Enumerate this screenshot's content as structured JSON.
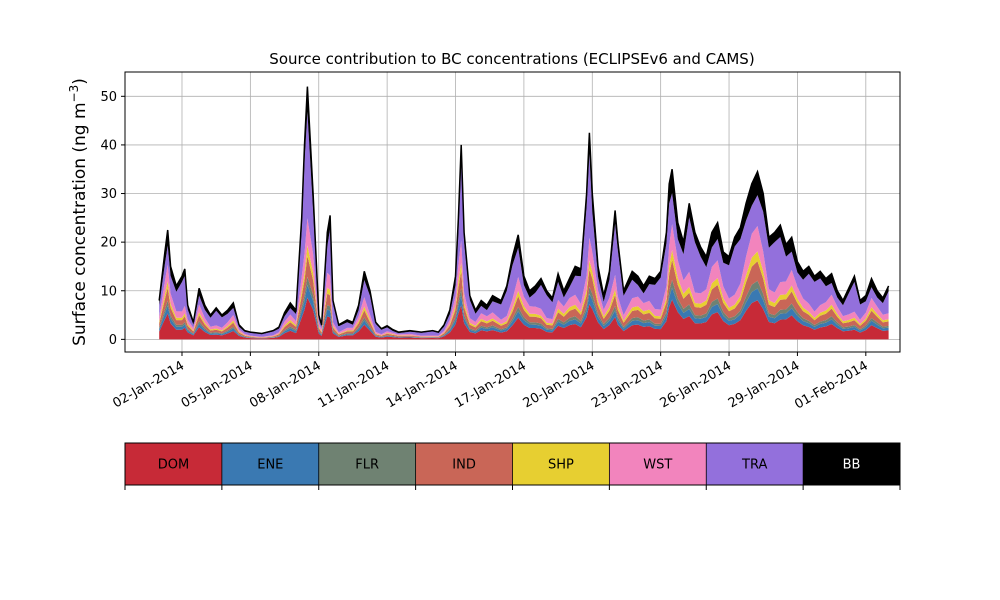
{
  "chart_data": {
    "type": "area",
    "title": "Source contribution to BC concentrations (ECLIPSEv6 and CAMS)",
    "ylabel": "Surface concentration (ng m",
    "ylabel_unit_exponent": "−3",
    "ylabel_close": ")",
    "xlabel": "",
    "ylim": [
      -2.6,
      55
    ],
    "yticks": [
      0,
      10,
      20,
      30,
      40,
      50
    ],
    "xlim": [
      "2013-12-30T12:00",
      "2014-02-02T12:00"
    ],
    "xtick_labels": [
      "02-Jan-2014",
      "05-Jan-2014",
      "08-Jan-2014",
      "11-Jan-2014",
      "14-Jan-2014",
      "17-Jan-2014",
      "20-Jan-2014",
      "23-Jan-2014",
      "26-Jan-2014",
      "29-Jan-2014",
      "01-Feb-2014"
    ],
    "xtick_dates": [
      "2014-01-02",
      "2014-01-05",
      "2014-01-08",
      "2014-01-11",
      "2014-01-14",
      "2014-01-17",
      "2014-01-20",
      "2014-01-23",
      "2014-01-26",
      "2014-01-29",
      "2014-02-01"
    ],
    "grid": true,
    "legend": "colorbar below chart",
    "stack_order": [
      "DOM",
      "ENE",
      "FLR",
      "IND",
      "SHP",
      "WST",
      "TRA",
      "BB"
    ],
    "series": [
      {
        "name": "DOM",
        "color": "#c72a37"
      },
      {
        "name": "ENE",
        "color": "#3a79b2"
      },
      {
        "name": "FLR",
        "color": "#6f8272"
      },
      {
        "name": "IND",
        "color": "#c96657"
      },
      {
        "name": "SHP",
        "color": "#e7cf31"
      },
      {
        "name": "WST",
        "color": "#f284bd"
      },
      {
        "name": "TRA",
        "color": "#9370dc"
      },
      {
        "name": "BB",
        "color": "#000000"
      }
    ],
    "total": [
      [
        "2014-01-01T00:00",
        8
      ],
      [
        "2014-01-01T06:00",
        18
      ],
      [
        "2014-01-01T09:00",
        22.5
      ],
      [
        "2014-01-01T12:00",
        15
      ],
      [
        "2014-01-01T18:00",
        11
      ],
      [
        "2014-01-02T00:00",
        13
      ],
      [
        "2014-01-02T03:00",
        14.5
      ],
      [
        "2014-01-02T06:00",
        7
      ],
      [
        "2014-01-02T12:00",
        3.5
      ],
      [
        "2014-01-02T18:00",
        10.5
      ],
      [
        "2014-01-03T00:00",
        7
      ],
      [
        "2014-01-03T06:00",
        5
      ],
      [
        "2014-01-03T12:00",
        6.5
      ],
      [
        "2014-01-03T18:00",
        5
      ],
      [
        "2014-01-04T00:00",
        6
      ],
      [
        "2014-01-04T06:00",
        7.5
      ],
      [
        "2014-01-04T12:00",
        3
      ],
      [
        "2014-01-04T18:00",
        1.8
      ],
      [
        "2014-01-05T00:00",
        1.5
      ],
      [
        "2014-01-05T12:00",
        1.2
      ],
      [
        "2014-01-06T00:00",
        1.8
      ],
      [
        "2014-01-06T06:00",
        2.5
      ],
      [
        "2014-01-06T12:00",
        5.5
      ],
      [
        "2014-01-06T18:00",
        7.5
      ],
      [
        "2014-01-07T00:00",
        6
      ],
      [
        "2014-01-07T06:00",
        25
      ],
      [
        "2014-01-07T09:00",
        40
      ],
      [
        "2014-01-07T12:00",
        52
      ],
      [
        "2014-01-07T18:00",
        30
      ],
      [
        "2014-01-08T00:00",
        5
      ],
      [
        "2014-01-08T03:00",
        3
      ],
      [
        "2014-01-08T09:00",
        22
      ],
      [
        "2014-01-08T12:00",
        25.5
      ],
      [
        "2014-01-08T15:00",
        8
      ],
      [
        "2014-01-08T21:00",
        3
      ],
      [
        "2014-01-09T06:00",
        4
      ],
      [
        "2014-01-09T12:00",
        3.5
      ],
      [
        "2014-01-09T18:00",
        7
      ],
      [
        "2014-01-10T00:00",
        14
      ],
      [
        "2014-01-10T06:00",
        10
      ],
      [
        "2014-01-10T12:00",
        3.5
      ],
      [
        "2014-01-10T18:00",
        2.2
      ],
      [
        "2014-01-11T00:00",
        2.8
      ],
      [
        "2014-01-11T06:00",
        2
      ],
      [
        "2014-01-11T12:00",
        1.5
      ],
      [
        "2014-01-12T00:00",
        1.8
      ],
      [
        "2014-01-12T12:00",
        1.5
      ],
      [
        "2014-01-13T00:00",
        1.8
      ],
      [
        "2014-01-13T06:00",
        1.5
      ],
      [
        "2014-01-13T12:00",
        3
      ],
      [
        "2014-01-13T18:00",
        6
      ],
      [
        "2014-01-14T00:00",
        13
      ],
      [
        "2014-01-14T03:00",
        25
      ],
      [
        "2014-01-14T06:00",
        40
      ],
      [
        "2014-01-14T09:00",
        22
      ],
      [
        "2014-01-14T15:00",
        9
      ],
      [
        "2014-01-14T21:00",
        6
      ],
      [
        "2014-01-15T03:00",
        8
      ],
      [
        "2014-01-15T09:00",
        7
      ],
      [
        "2014-01-15T15:00",
        9
      ],
      [
        "2014-01-16T00:00",
        8
      ],
      [
        "2014-01-16T06:00",
        11
      ],
      [
        "2014-01-16T12:00",
        17
      ],
      [
        "2014-01-16T18:00",
        21.5
      ],
      [
        "2014-01-17T00:00",
        13
      ],
      [
        "2014-01-17T06:00",
        10
      ],
      [
        "2014-01-17T12:00",
        11
      ],
      [
        "2014-01-17T18:00",
        12.5
      ],
      [
        "2014-01-18T00:00",
        10
      ],
      [
        "2014-01-18T06:00",
        8.5
      ],
      [
        "2014-01-18T12:00",
        13.5
      ],
      [
        "2014-01-18T18:00",
        10
      ],
      [
        "2014-01-19T00:00",
        12.5
      ],
      [
        "2014-01-19T06:00",
        15
      ],
      [
        "2014-01-19T12:00",
        14.5
      ],
      [
        "2014-01-19T18:00",
        30
      ],
      [
        "2014-01-19T21:00",
        42.5
      ],
      [
        "2014-01-20T00:00",
        30
      ],
      [
        "2014-01-20T06:00",
        15
      ],
      [
        "2014-01-20T12:00",
        9
      ],
      [
        "2014-01-20T18:00",
        14
      ],
      [
        "2014-01-21T00:00",
        26.5
      ],
      [
        "2014-01-21T03:00",
        20
      ],
      [
        "2014-01-21T09:00",
        10
      ],
      [
        "2014-01-21T18:00",
        14
      ],
      [
        "2014-01-22T00:00",
        13
      ],
      [
        "2014-01-22T06:00",
        11
      ],
      [
        "2014-01-22T12:00",
        13
      ],
      [
        "2014-01-22T18:00",
        12.5
      ],
      [
        "2014-01-23T00:00",
        14
      ],
      [
        "2014-01-23T06:00",
        22
      ],
      [
        "2014-01-23T09:00",
        32
      ],
      [
        "2014-01-23T12:00",
        35
      ],
      [
        "2014-01-23T18:00",
        24
      ],
      [
        "2014-01-24T00:00",
        20
      ],
      [
        "2014-01-24T06:00",
        28
      ],
      [
        "2014-01-24T12:00",
        22
      ],
      [
        "2014-01-24T18:00",
        19
      ],
      [
        "2014-01-25T00:00",
        17
      ],
      [
        "2014-01-25T06:00",
        22
      ],
      [
        "2014-01-25T12:00",
        24
      ],
      [
        "2014-01-25T18:00",
        18
      ],
      [
        "2014-01-26T00:00",
        17
      ],
      [
        "2014-01-26T06:00",
        21
      ],
      [
        "2014-01-26T12:00",
        23
      ],
      [
        "2014-01-26T18:00",
        28
      ],
      [
        "2014-01-27T00:00",
        32
      ],
      [
        "2014-01-27T06:00",
        34.5
      ],
      [
        "2014-01-27T12:00",
        30
      ],
      [
        "2014-01-27T18:00",
        21
      ],
      [
        "2014-01-28T00:00",
        22
      ],
      [
        "2014-01-28T06:00",
        23.5
      ],
      [
        "2014-01-28T12:00",
        19.5
      ],
      [
        "2014-01-28T18:00",
        21
      ],
      [
        "2014-01-29T00:00",
        16
      ],
      [
        "2014-01-29T06:00",
        14
      ],
      [
        "2014-01-29T12:00",
        15
      ],
      [
        "2014-01-29T18:00",
        13
      ],
      [
        "2014-01-30T00:00",
        14
      ],
      [
        "2014-01-30T06:00",
        12.5
      ],
      [
        "2014-01-30T12:00",
        13.5
      ],
      [
        "2014-01-30T18:00",
        10
      ],
      [
        "2014-01-31T00:00",
        8
      ],
      [
        "2014-01-31T06:00",
        10.5
      ],
      [
        "2014-01-31T12:00",
        13
      ],
      [
        "2014-01-31T18:00",
        8
      ],
      [
        "2014-02-01T00:00",
        9
      ],
      [
        "2014-02-01T06:00",
        12.5
      ],
      [
        "2014-02-01T12:00",
        10
      ],
      [
        "2014-02-01T18:00",
        8.5
      ],
      [
        "2014-02-02T00:00",
        11
      ]
    ]
  }
}
